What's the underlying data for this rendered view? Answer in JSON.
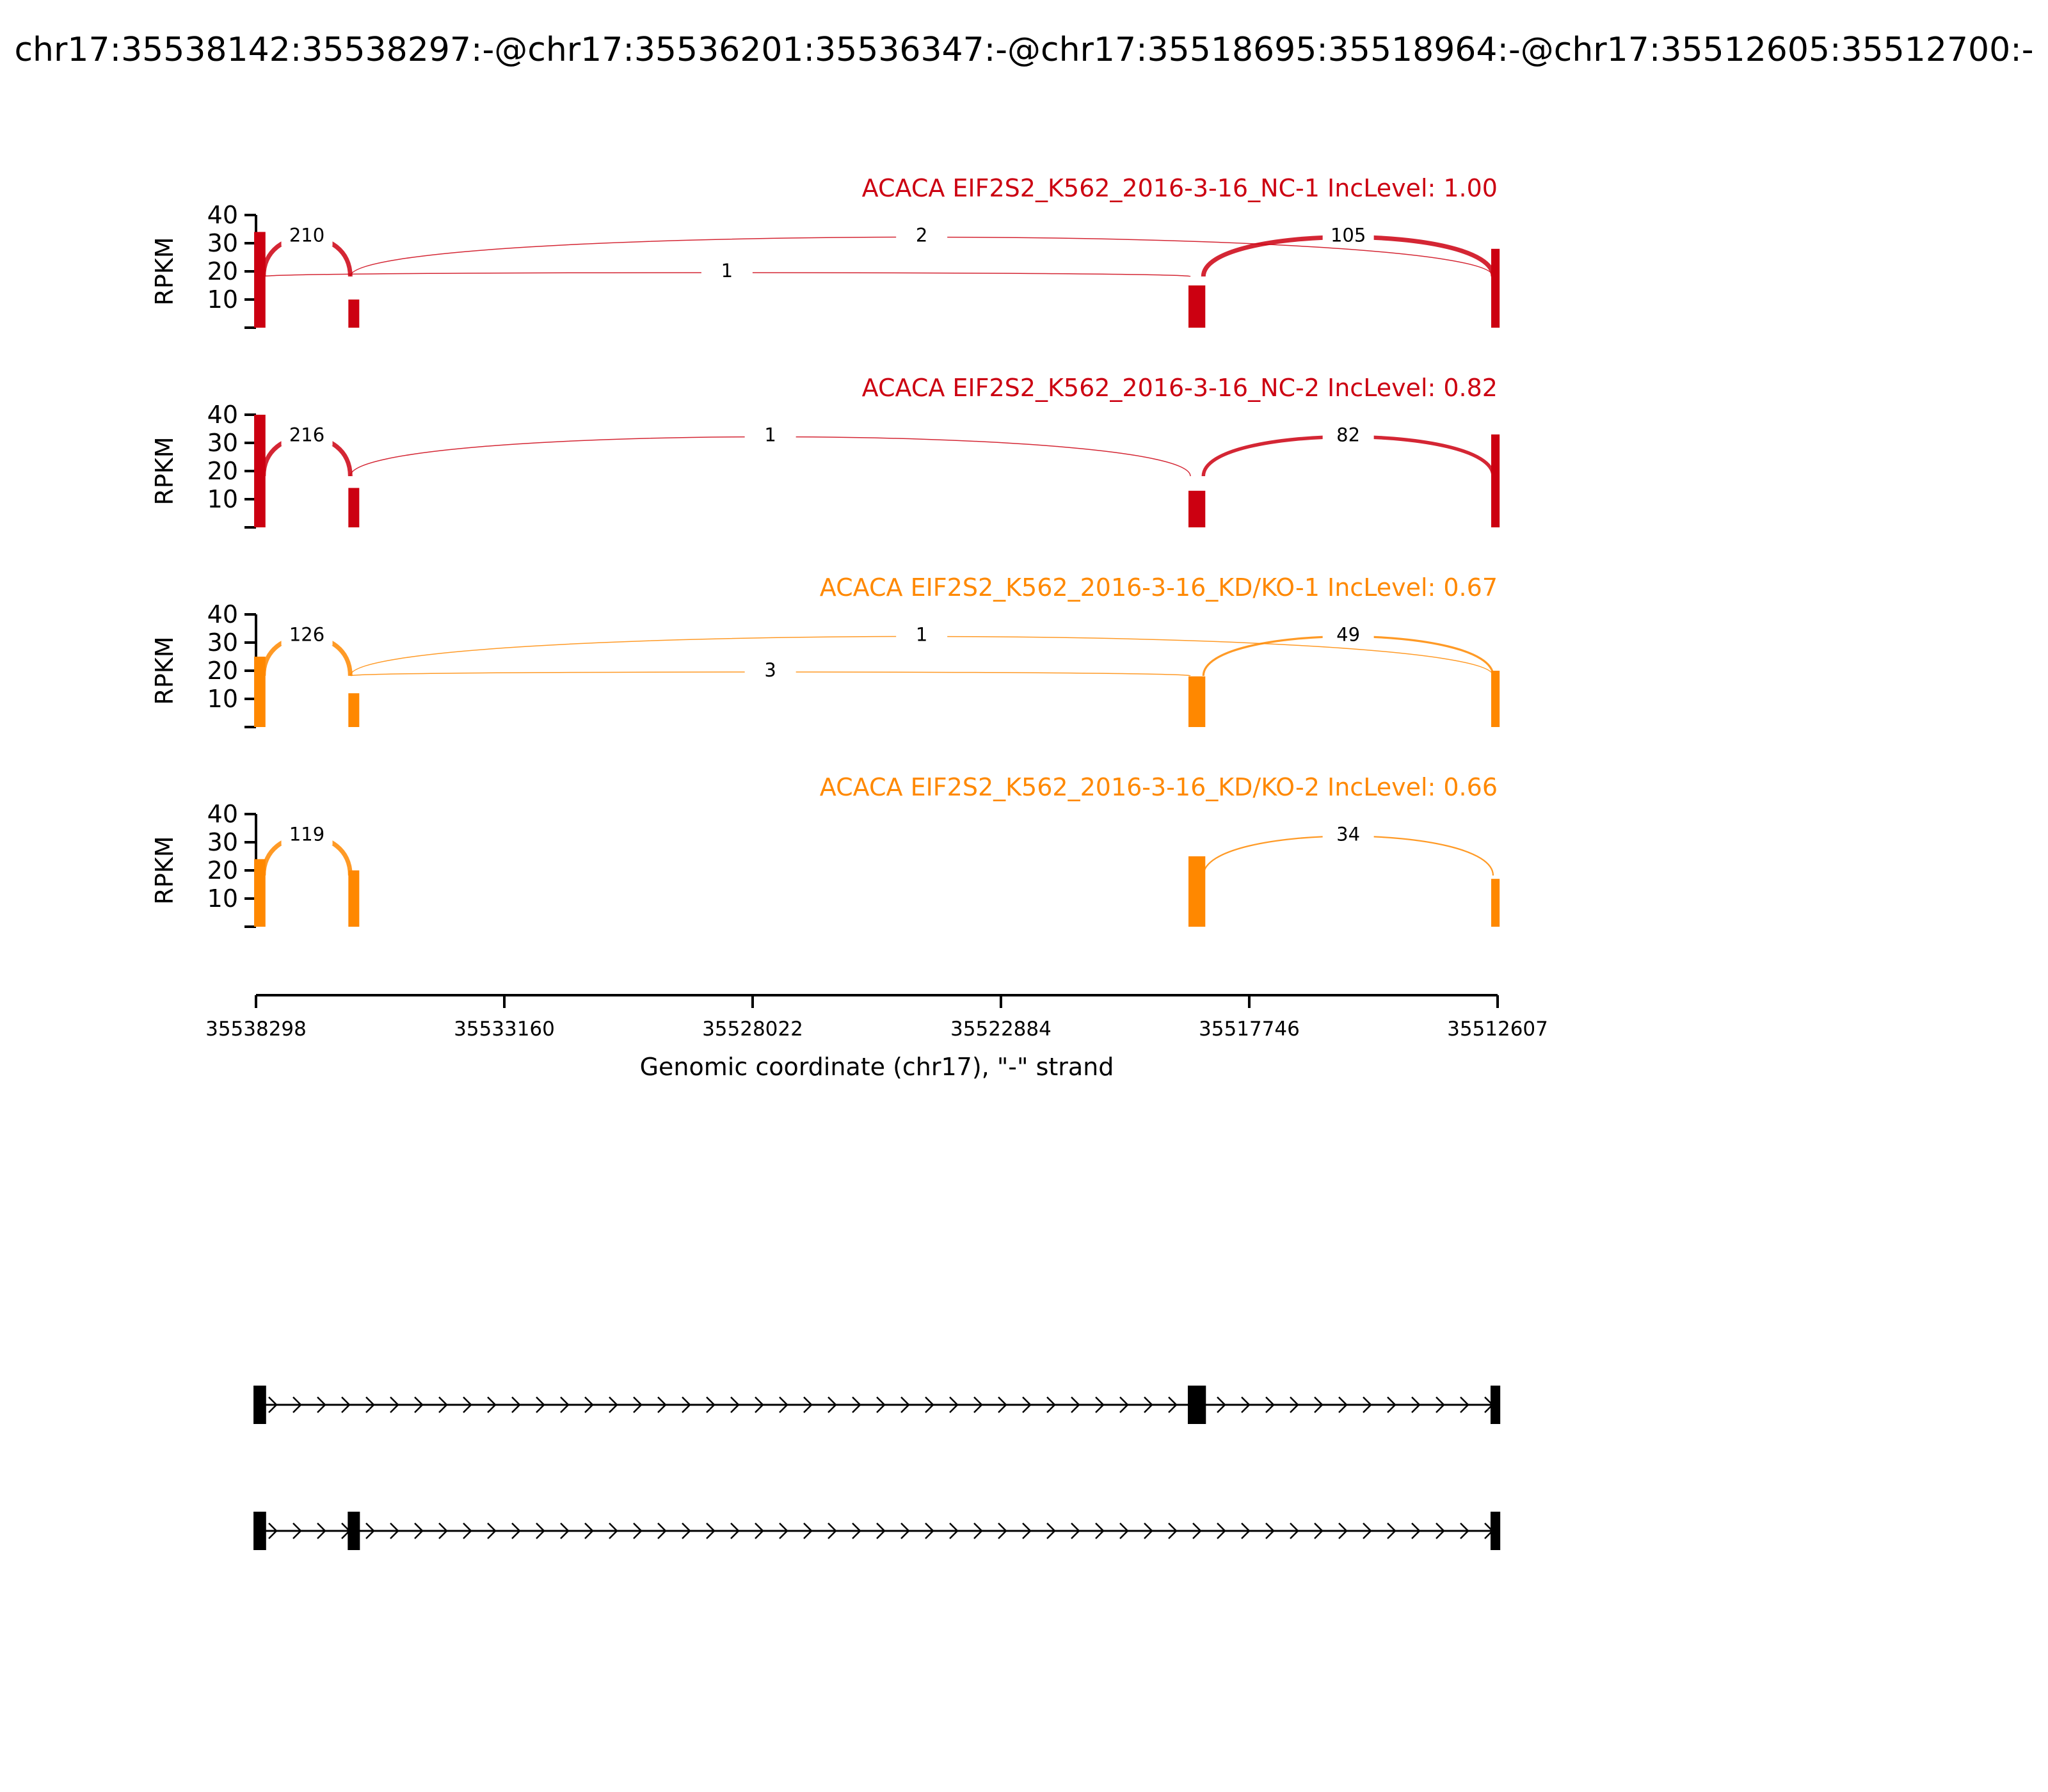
{
  "page_title": "chr17:35538142:35538297:-@chr17:35536201:35536347:-@chr17:35518695:35518964:-@chr17:35512605:35512700:-",
  "chart_data": {
    "type": "sashimi",
    "x_range": [
      35538298,
      35512607
    ],
    "x_ticks": [
      "35538298",
      "35533160",
      "35528022",
      "35522884",
      "35517746",
      "35512607"
    ],
    "xlabel": "Genomic coordinate (chr17), \"-\" strand",
    "ylabel": "RPKM",
    "y_ticks": [
      "10",
      "20",
      "30",
      "40"
    ],
    "ylim": [
      0,
      40
    ],
    "panels": [
      {
        "label": "ACACA EIF2S2_K562_2016-3-16_NC-1 IncLevel: 1.00",
        "color": "#cc0011",
        "exon_levels": {
          "e1": 34,
          "e2": 10,
          "e3": 15,
          "e4": 28
        },
        "junctions": [
          {
            "from": 35536347,
            "to": 35512700,
            "count": "2",
            "above": true
          },
          {
            "from": 35538142,
            "to": 35518964,
            "count": "1",
            "above": false
          },
          {
            "from": 35518695,
            "to": 35512700,
            "count": "105",
            "above": true
          },
          {
            "from": 35538142,
            "to": 35536347,
            "count": "210",
            "above": true
          }
        ]
      },
      {
        "label": "ACACA EIF2S2_K562_2016-3-16_NC-2 IncLevel: 0.82",
        "color": "#cc0011",
        "exon_levels": {
          "e1": 40,
          "e2": 14,
          "e3": 13,
          "e4": 33
        },
        "junctions": [
          {
            "from": 35536347,
            "to": 35518964,
            "count": "1",
            "above": true
          },
          {
            "from": 35518695,
            "to": 35512700,
            "count": "82",
            "above": true
          },
          {
            "from": 35538142,
            "to": 35536347,
            "count": "216",
            "above": true
          }
        ]
      },
      {
        "label": "ACACA EIF2S2_K562_2016-3-16_KD/KO-1 IncLevel: 0.67",
        "color": "#ff8800",
        "exon_levels": {
          "e1": 25,
          "e2": 12,
          "e3": 18,
          "e4": 20
        },
        "junctions": [
          {
            "from": 35536347,
            "to": 35512700,
            "count": "1",
            "above": true
          },
          {
            "from": 35536347,
            "to": 35518964,
            "count": "3",
            "above": false
          },
          {
            "from": 35518695,
            "to": 35512700,
            "count": "49",
            "above": true
          },
          {
            "from": 35538142,
            "to": 35536347,
            "count": "126",
            "above": true
          }
        ]
      },
      {
        "label": "ACACA EIF2S2_K562_2016-3-16_KD/KO-2 IncLevel: 0.66",
        "color": "#ff8800",
        "exon_levels": {
          "e1": 24,
          "e2": 20,
          "e3": 25,
          "e4": 17
        },
        "junctions": [
          {
            "from": 35518695,
            "to": 35512700,
            "count": "34",
            "above": true
          },
          {
            "from": 35538142,
            "to": 35536347,
            "count": "119",
            "above": true
          }
        ]
      }
    ],
    "isoforms": [
      {
        "exons": [
          [
            35538297,
            35538142
          ],
          [
            35518964,
            35518695
          ],
          [
            35512700,
            35512605
          ]
        ]
      },
      {
        "exons": [
          [
            35538297,
            35538142
          ],
          [
            35536347,
            35536201
          ],
          [
            35512700,
            35512605
          ]
        ]
      }
    ]
  }
}
